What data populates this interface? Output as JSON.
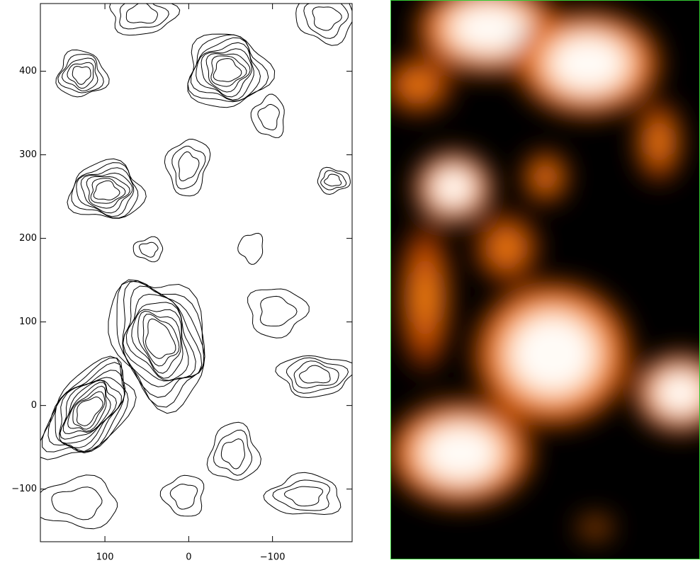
{
  "chart_data": {
    "type": "contour",
    "xlim": [
      177,
      -195
    ],
    "ylim": [
      -163,
      481
    ],
    "xticks": [
      100,
      0,
      {
        "value": -100,
        "label": "−100"
      }
    ],
    "yticks": [
      {
        "value": -100,
        "label": "−100"
      },
      0,
      100,
      200,
      300,
      400
    ]
  }
}
